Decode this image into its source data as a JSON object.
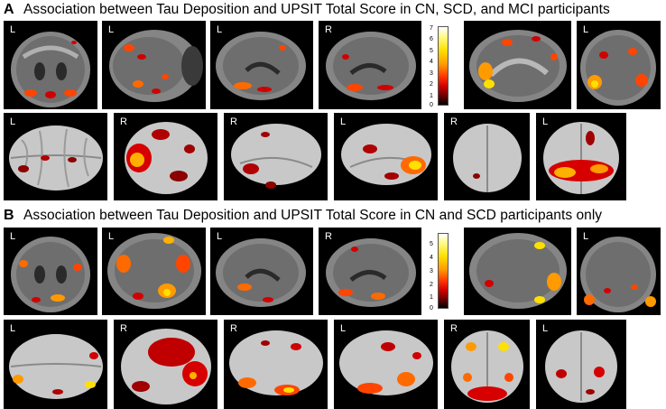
{
  "panels": [
    {
      "letter": "A",
      "title": "Association between Tau Deposition and UPSIT Total Score in CN, SCD, and MCI participants",
      "slice_labels": [
        "L",
        "L",
        "L",
        "R",
        "",
        "L",
        "L"
      ],
      "render_labels": [
        "L",
        "R",
        "R",
        "L",
        "R",
        "L"
      ],
      "colorbar_ticks": [
        "7",
        "6",
        "5",
        "4",
        "3",
        "2",
        "1",
        "0"
      ]
    },
    {
      "letter": "B",
      "title": "Association between Tau Deposition and UPSIT Total Score in CN and SCD participants only",
      "slice_labels": [
        "L",
        "L",
        "L",
        "R",
        "",
        "L"
      ],
      "render_labels": [
        "L",
        "R",
        "R",
        "L",
        "R",
        "L"
      ],
      "colorbar_ticks": [
        "5",
        "4",
        "3",
        "2",
        "1",
        "0"
      ]
    }
  ],
  "colors": {
    "background": "#000000",
    "mri_gray": "#9a9a9a",
    "surface_gray": "#c8c8c8",
    "blob_low": "#8b0000",
    "blob_mid": "#ff4500",
    "blob_high": "#ffff66"
  },
  "icons": [
    "coronal-slice",
    "axial-slice",
    "sagittal-slice",
    "cortical-surface-render",
    "heat-colorbar"
  ]
}
